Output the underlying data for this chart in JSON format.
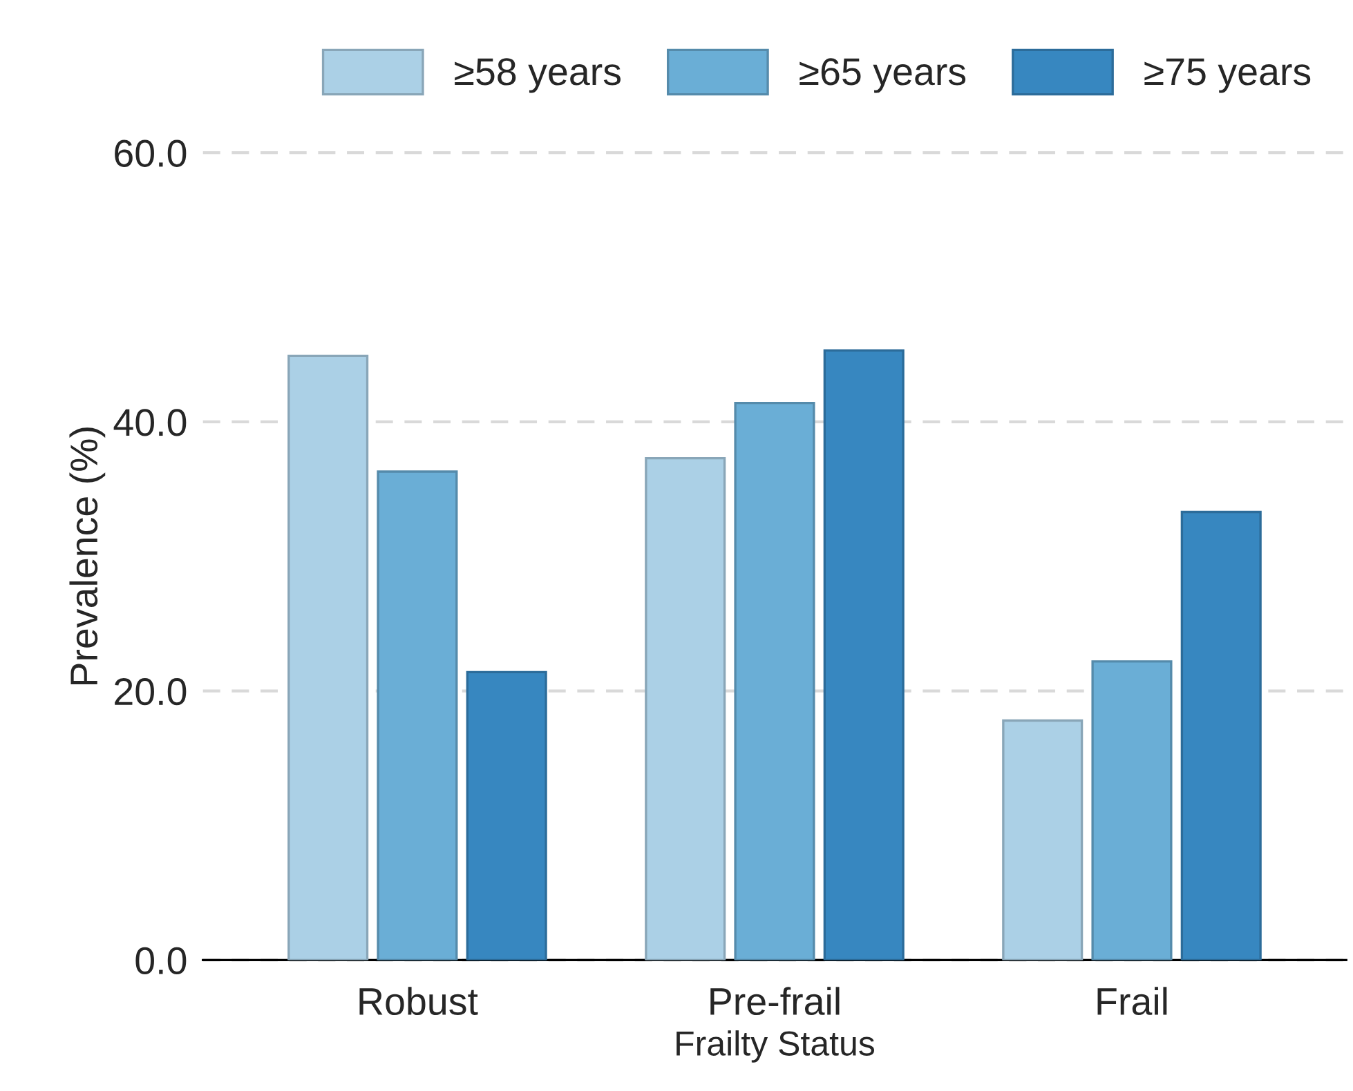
{
  "chart_data": {
    "type": "bar",
    "xlabel": "Frailty Status",
    "ylabel": "Prevalence (%)",
    "categories": [
      "Robust",
      "Pre-frail",
      "Frail"
    ],
    "series": [
      {
        "name": "≥58 years",
        "color": "#abd0e6",
        "values": [
          44.9,
          37.3,
          17.8
        ]
      },
      {
        "name": "≥65 years",
        "color": "#6aaed6",
        "values": [
          36.3,
          41.4,
          22.2
        ]
      },
      {
        "name": "≥75 years",
        "color": "#3787c0",
        "values": [
          21.4,
          45.3,
          33.3
        ]
      }
    ],
    "ylim": [
      0,
      60
    ],
    "yticks": [
      {
        "value": 0,
        "label": "0.0"
      },
      {
        "value": 20,
        "label": "20.0"
      },
      {
        "value": 40,
        "label": "40.0"
      },
      {
        "value": 60,
        "label": "60.0"
      }
    ],
    "grid": "y",
    "legend": "top right"
  }
}
